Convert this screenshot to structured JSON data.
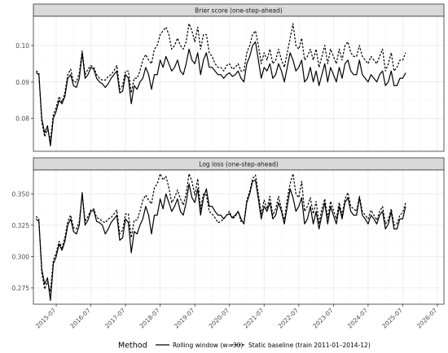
{
  "chart_data": [
    {
      "type": "line",
      "title": "Brier score (one-step-ahead)",
      "xlabel": "",
      "ylabel": "",
      "ylim": [
        0.071,
        0.108
      ],
      "yticks": [
        0.08,
        0.09,
        0.1
      ],
      "ytick_labels": [
        "0.08",
        "0.09",
        "0.10"
      ],
      "grid": true,
      "series": [
        {
          "name": "Rolling window (w=30)",
          "linestyle": "solid",
          "color": "#000000",
          "values": [
            0.0925,
            0.092,
            0.08,
            0.076,
            0.078,
            0.0725,
            0.08,
            0.082,
            0.085,
            0.084,
            0.086,
            0.091,
            0.092,
            0.089,
            0.0885,
            0.091,
            0.098,
            0.091,
            0.092,
            0.094,
            0.0935,
            0.091,
            0.09,
            0.0895,
            0.0885,
            0.0895,
            0.091,
            0.092,
            0.093,
            0.087,
            0.0875,
            0.092,
            0.091,
            0.084,
            0.089,
            0.088,
            0.09,
            0.091,
            0.094,
            0.092,
            0.088,
            0.092,
            0.092,
            0.096,
            0.094,
            0.097,
            0.095,
            0.093,
            0.094,
            0.096,
            0.093,
            0.092,
            0.095,
            0.099,
            0.096,
            0.095,
            0.098,
            0.092,
            0.096,
            0.098,
            0.094,
            0.094,
            0.093,
            0.092,
            0.092,
            0.091,
            0.092,
            0.0925,
            0.0915,
            0.092,
            0.093,
            0.091,
            0.09,
            0.095,
            0.097,
            0.1,
            0.101,
            0.096,
            0.091,
            0.094,
            0.093,
            0.095,
            0.091,
            0.092,
            0.095,
            0.093,
            0.09,
            0.094,
            0.098,
            0.096,
            0.093,
            0.094,
            0.096,
            0.09,
            0.091,
            0.094,
            0.09,
            0.093,
            0.089,
            0.092,
            0.095,
            0.09,
            0.094,
            0.092,
            0.09,
            0.094,
            0.091,
            0.095,
            0.096,
            0.093,
            0.092,
            0.092,
            0.096,
            0.092,
            0.091,
            0.09,
            0.092,
            0.091,
            0.09,
            0.092,
            0.093,
            0.089,
            0.09,
            0.093,
            0.089,
            0.089,
            0.091,
            0.091,
            0.0925
          ]
        },
        {
          "name": "Static baseline (train 2011-01–2014-12)",
          "linestyle": "dashed",
          "color": "#000000",
          "values": [
            0.093,
            0.0925,
            0.079,
            0.075,
            0.077,
            0.074,
            0.081,
            0.083,
            0.086,
            0.0845,
            0.087,
            0.092,
            0.0935,
            0.09,
            0.09,
            0.0925,
            0.0985,
            0.092,
            0.0935,
            0.0945,
            0.094,
            0.092,
            0.091,
            0.0905,
            0.0905,
            0.0915,
            0.092,
            0.093,
            0.0945,
            0.088,
            0.089,
            0.093,
            0.093,
            0.087,
            0.091,
            0.091,
            0.093,
            0.096,
            0.0975,
            0.096,
            0.095,
            0.099,
            0.1,
            0.103,
            0.104,
            0.105,
            0.103,
            0.099,
            0.1,
            0.102,
            0.1,
            0.099,
            0.101,
            0.106,
            0.104,
            0.101,
            0.105,
            0.099,
            0.103,
            0.103,
            0.098,
            0.097,
            0.095,
            0.094,
            0.094,
            0.093,
            0.0945,
            0.095,
            0.0935,
            0.094,
            0.095,
            0.093,
            0.093,
            0.098,
            0.1,
            0.103,
            0.104,
            0.1,
            0.095,
            0.098,
            0.096,
            0.099,
            0.095,
            0.096,
            0.099,
            0.096,
            0.094,
            0.098,
            0.102,
            0.106,
            0.1,
            0.099,
            0.102,
            0.096,
            0.097,
            0.099,
            0.096,
            0.099,
            0.094,
            0.097,
            0.1,
            0.095,
            0.099,
            0.097,
            0.095,
            0.099,
            0.096,
            0.1,
            0.101,
            0.098,
            0.097,
            0.097,
            0.1,
            0.097,
            0.096,
            0.095,
            0.097,
            0.096,
            0.095,
            0.097,
            0.099,
            0.093,
            0.095,
            0.098,
            0.093,
            0.094,
            0.096,
            0.096,
            0.098
          ]
        }
      ]
    },
    {
      "type": "line",
      "title": "Log loss (one-step-ahead)",
      "xlabel": "",
      "ylabel": "",
      "ylim": [
        0.262,
        0.369
      ],
      "yticks": [
        0.275,
        0.3,
        0.325,
        0.35
      ],
      "ytick_labels": [
        "0.275",
        "0.300",
        "0.325",
        "0.350"
      ],
      "grid": true,
      "x_start": "2014-12",
      "x_step_months": 1,
      "xticks": [
        "2015-07",
        "2016-07",
        "2017-07",
        "2018-07",
        "2019-07",
        "2020-07",
        "2021-07",
        "2022-07",
        "2023-07",
        "2024-07",
        "2025-07",
        "2026-07"
      ],
      "series": [
        {
          "name": "Rolling window (w=30)",
          "linestyle": "solid",
          "color": "#000000",
          "values": [
            0.33,
            0.328,
            0.29,
            0.278,
            0.283,
            0.265,
            0.294,
            0.3,
            0.31,
            0.305,
            0.312,
            0.325,
            0.33,
            0.32,
            0.318,
            0.325,
            0.351,
            0.325,
            0.329,
            0.336,
            0.337,
            0.328,
            0.327,
            0.325,
            0.318,
            0.322,
            0.327,
            0.33,
            0.333,
            0.313,
            0.315,
            0.33,
            0.327,
            0.303,
            0.32,
            0.318,
            0.325,
            0.33,
            0.34,
            0.333,
            0.318,
            0.333,
            0.333,
            0.346,
            0.338,
            0.35,
            0.343,
            0.336,
            0.34,
            0.346,
            0.336,
            0.333,
            0.343,
            0.358,
            0.347,
            0.343,
            0.354,
            0.333,
            0.347,
            0.354,
            0.34,
            0.34,
            0.336,
            0.333,
            0.333,
            0.33,
            0.333,
            0.334,
            0.331,
            0.333,
            0.336,
            0.33,
            0.326,
            0.343,
            0.35,
            0.36,
            0.361,
            0.346,
            0.33,
            0.34,
            0.336,
            0.343,
            0.33,
            0.333,
            0.343,
            0.336,
            0.326,
            0.34,
            0.354,
            0.347,
            0.336,
            0.34,
            0.347,
            0.326,
            0.33,
            0.34,
            0.326,
            0.336,
            0.322,
            0.333,
            0.343,
            0.326,
            0.34,
            0.333,
            0.326,
            0.34,
            0.33,
            0.343,
            0.347,
            0.336,
            0.333,
            0.333,
            0.347,
            0.333,
            0.33,
            0.326,
            0.333,
            0.33,
            0.326,
            0.333,
            0.336,
            0.322,
            0.326,
            0.336,
            0.322,
            0.322,
            0.33,
            0.33,
            0.34
          ]
        },
        {
          "name": "Static baseline (train 2011-01–2014-12)",
          "linestyle": "dashed",
          "color": "#000000",
          "values": [
            0.332,
            0.33,
            0.287,
            0.274,
            0.28,
            0.272,
            0.297,
            0.303,
            0.312,
            0.307,
            0.315,
            0.328,
            0.333,
            0.323,
            0.322,
            0.328,
            0.35,
            0.328,
            0.332,
            0.337,
            0.338,
            0.331,
            0.33,
            0.328,
            0.327,
            0.33,
            0.331,
            0.334,
            0.337,
            0.318,
            0.321,
            0.334,
            0.334,
            0.315,
            0.329,
            0.329,
            0.336,
            0.345,
            0.349,
            0.345,
            0.342,
            0.355,
            0.358,
            0.366,
            0.361,
            0.364,
            0.355,
            0.343,
            0.347,
            0.353,
            0.346,
            0.341,
            0.35,
            0.366,
            0.36,
            0.349,
            0.362,
            0.338,
            0.35,
            0.349,
            0.336,
            0.334,
            0.331,
            0.327,
            0.328,
            0.33,
            0.333,
            0.336,
            0.33,
            0.332,
            0.336,
            0.328,
            0.327,
            0.345,
            0.352,
            0.362,
            0.365,
            0.35,
            0.334,
            0.345,
            0.338,
            0.348,
            0.333,
            0.338,
            0.348,
            0.338,
            0.328,
            0.346,
            0.358,
            0.366,
            0.35,
            0.347,
            0.36,
            0.336,
            0.34,
            0.347,
            0.334,
            0.344,
            0.326,
            0.338,
            0.346,
            0.331,
            0.344,
            0.337,
            0.33,
            0.343,
            0.333,
            0.346,
            0.351,
            0.34,
            0.338,
            0.336,
            0.348,
            0.336,
            0.333,
            0.33,
            0.337,
            0.333,
            0.329,
            0.336,
            0.34,
            0.326,
            0.329,
            0.338,
            0.325,
            0.326,
            0.333,
            0.335,
            0.343
          ]
        }
      ]
    }
  ],
  "legend": {
    "title": "Method",
    "position": "bottom",
    "items": [
      {
        "label": "Rolling window (w=30)",
        "linestyle": "solid"
      },
      {
        "label": "Static baseline (train 2011-01–2014-12)",
        "linestyle": "dashed"
      }
    ]
  },
  "colors": {
    "panel_border": "#333333",
    "strip_fill": "#d9d9d9",
    "grid_major": "#ebebeb",
    "grid_minor": "#f5f5f5",
    "axis_text": "#4d4d4d",
    "line": "#000000"
  }
}
